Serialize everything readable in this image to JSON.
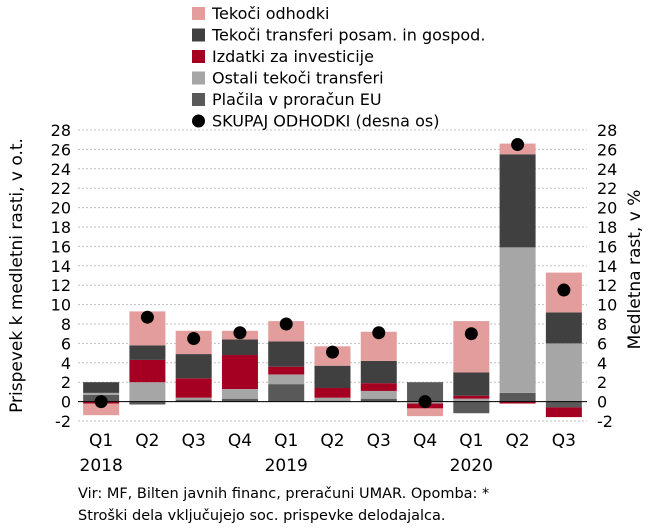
{
  "chart_data": {
    "type": "bar",
    "stacked": true,
    "categories": [
      "Q1",
      "Q2",
      "Q3",
      "Q4",
      "Q1",
      "Q2",
      "Q3",
      "Q4",
      "Q1",
      "Q2",
      "Q3"
    ],
    "years": [
      {
        "label": "2018",
        "at_category": 0
      },
      {
        "label": "2019",
        "at_category": 4
      },
      {
        "label": "2020",
        "at_category": 8
      }
    ],
    "ylabel_left": "Prispevek k medletni rasti, v o.t.",
    "ylabel_right": "Medletna rast, v %",
    "ylim": [
      -2,
      28
    ],
    "yticks": [
      -2,
      0,
      2,
      4,
      6,
      8,
      10,
      12,
      14,
      16,
      18,
      20,
      22,
      24,
      26,
      28
    ],
    "grid": true,
    "legend_position": "top-left",
    "series": [
      {
        "name": "Plačila v proračun EU",
        "color": "#595959",
        "values": [
          0.7,
          -0.3,
          0.2,
          0.3,
          1.8,
          0.1,
          0.3,
          2.0,
          -1.2,
          0.9,
          -0.6
        ]
      },
      {
        "name": "Ostali tekoči transferi",
        "color": "#a6a6a6",
        "values": [
          0.2,
          2.0,
          0.2,
          1.0,
          1.0,
          0.3,
          0.8,
          -0.2,
          0.3,
          15.0,
          6.0
        ]
      },
      {
        "name": "Izdatki za investicije",
        "color": "#a50021",
        "values": [
          -0.2,
          2.3,
          2.0,
          3.5,
          0.8,
          1.0,
          0.8,
          -0.5,
          0.3,
          -0.2,
          -1.0
        ]
      },
      {
        "name": "Tekoči transferi posam. in gospod.",
        "color": "#404040",
        "values": [
          1.1,
          1.5,
          2.5,
          1.6,
          2.6,
          2.3,
          2.3,
          0.0,
          2.4,
          9.6,
          3.2
        ]
      },
      {
        "name": "Tekoči odhodki",
        "color": "#e39d9c",
        "values": [
          -1.2,
          3.5,
          2.4,
          0.9,
          2.1,
          2.0,
          3.0,
          -0.8,
          5.3,
          1.1,
          4.1
        ]
      }
    ],
    "total": {
      "name": "SKUPAJ ODHODKI (desna os)",
      "color": "#000000",
      "values": [
        0.0,
        8.7,
        6.5,
        7.1,
        8.0,
        5.1,
        7.1,
        0.0,
        7.0,
        26.5,
        11.5
      ]
    }
  },
  "source_note": {
    "line1": "Vir: MF, Bilten javnih financ, preračuni UMAR. Opomba: *",
    "line2": "Stroški dela vključujejo soc. prispevke delodajalca."
  }
}
